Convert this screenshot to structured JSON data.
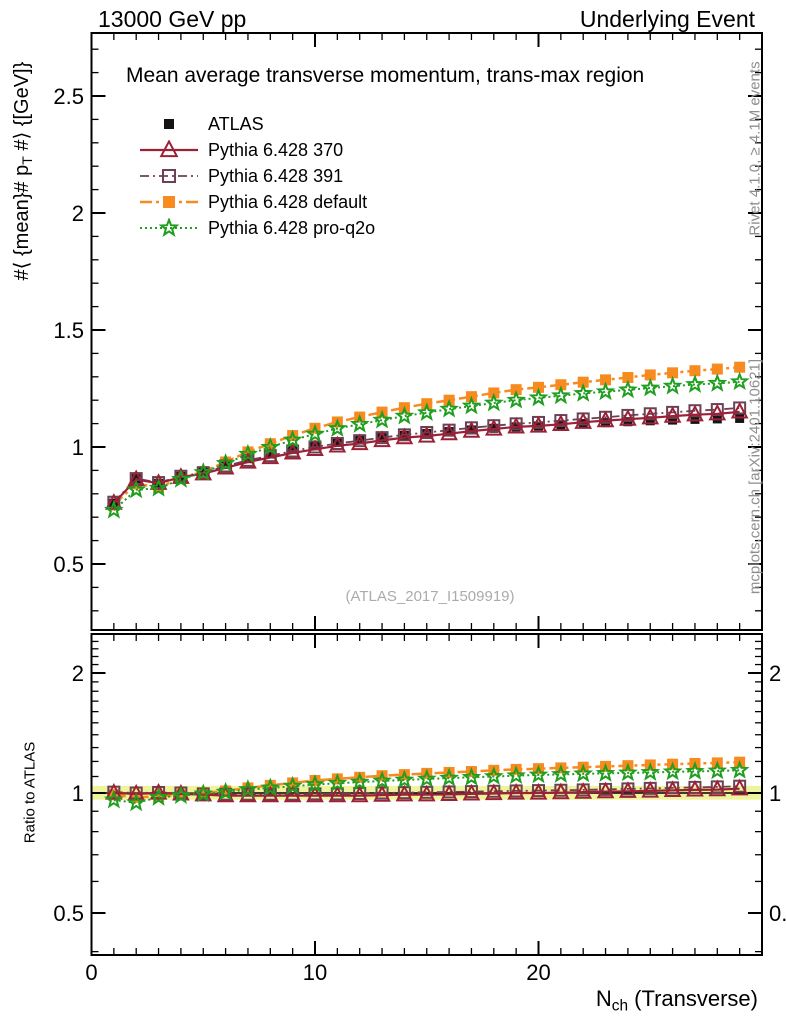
{
  "header": {
    "left": "13000 GeV pp",
    "right": "Underlying Event"
  },
  "side_notes": {
    "top_right": "Rivet 4.1.0, ≥ 4.1M events",
    "bottom_right": "mcplots.cern.ch [arXiv:2401.10621]"
  },
  "watermark": "(ATLAS_2017_I1509919)",
  "chart_data": {
    "type": "line",
    "title": "Mean average transverse momentum, trans-max region",
    "axis_labels": {
      "y_pre": "#⟨ {mean}# p",
      "y_sub": "T",
      "y_post": " #⟩ {[GeV]}",
      "x_pre": "N",
      "x_sub": "ch",
      "x_post": " (Transverse)",
      "ratio": "Ratio to ATLAS"
    },
    "xlim": [
      0,
      30
    ],
    "ylim_main": [
      0.22,
      2.78
    ],
    "ratio_ylim_log": [
      0.39,
      2.52
    ],
    "x_major_ticks": [
      0,
      10,
      20
    ],
    "y_major_ticks": [
      0.5,
      1,
      1.5,
      2,
      2.5
    ],
    "y_major_labels": [
      "0.5",
      "1",
      "1.5",
      "2",
      "2.5"
    ],
    "ratio_major_ticks": [
      0.5,
      1,
      2
    ],
    "ratio_major_labels": [
      "0.5",
      "1",
      "2"
    ],
    "grid": false,
    "legend_position": "top-left",
    "ratio_band": {
      "lo": 0.962,
      "hi": 1.042,
      "color": "#eef49c"
    },
    "x": [
      1,
      2,
      3,
      4,
      5,
      6,
      7,
      8,
      9,
      10,
      11,
      12,
      13,
      14,
      15,
      16,
      17,
      18,
      19,
      20,
      21,
      22,
      23,
      24,
      25,
      26,
      27,
      28,
      29
    ],
    "series": [
      {
        "name": "ATLAS",
        "color": "#141414",
        "marker": "filled-square",
        "marker_size": 9,
        "line": "none",
        "dash": "",
        "width": 0,
        "yerr": 0.012,
        "values": [
          0.76,
          0.865,
          0.845,
          0.875,
          0.895,
          0.925,
          0.95,
          0.97,
          0.99,
          1.005,
          1.02,
          1.03,
          1.04,
          1.05,
          1.058,
          1.066,
          1.073,
          1.08,
          1.086,
          1.09,
          1.095,
          1.1,
          1.104,
          1.108,
          1.112,
          1.115,
          1.118,
          1.12,
          1.122
        ]
      },
      {
        "name": "Pythia 6.428 370",
        "color": "#9c2136",
        "marker": "open-triangle",
        "marker_size": 12,
        "line": "solid",
        "dash": "",
        "width": 2.2,
        "values": [
          0.76,
          0.861,
          0.845,
          0.871,
          0.886,
          0.911,
          0.936,
          0.955,
          0.975,
          0.99,
          1.005,
          1.015,
          1.028,
          1.04,
          1.047,
          1.057,
          1.068,
          1.077,
          1.086,
          1.09,
          1.097,
          1.106,
          1.113,
          1.119,
          1.125,
          1.132,
          1.138,
          1.142,
          1.15
        ],
        "ratio": [
          1.0,
          0.995,
          1.0,
          0.995,
          0.99,
          0.985,
          0.985,
          0.985,
          0.985,
          0.985,
          0.985,
          0.985,
          0.988,
          0.99,
          0.99,
          0.992,
          0.995,
          0.997,
          1.0,
          1.0,
          1.002,
          1.005,
          1.008,
          1.01,
          1.012,
          1.015,
          1.018,
          1.02,
          1.025
        ]
      },
      {
        "name": "Pythia 6.428 391",
        "color": "#6b4255",
        "marker": "open-square",
        "marker_size": 11,
        "line": "dashdot",
        "dash": "9 4 2 4",
        "width": 1.8,
        "values": [
          0.764,
          0.865,
          0.848,
          0.875,
          0.89,
          0.919,
          0.943,
          0.963,
          0.983,
          1.0,
          1.015,
          1.027,
          1.04,
          1.052,
          1.062,
          1.072,
          1.082,
          1.091,
          1.099,
          1.105,
          1.113,
          1.12,
          1.127,
          1.135,
          1.142,
          1.148,
          1.155,
          1.16,
          1.167
        ],
        "ratio": [
          1.005,
          1.0,
          1.003,
          1.0,
          0.995,
          0.993,
          0.993,
          0.993,
          0.993,
          0.995,
          0.995,
          0.997,
          1.0,
          1.002,
          1.004,
          1.006,
          1.008,
          1.01,
          1.012,
          1.014,
          1.016,
          1.018,
          1.021,
          1.024,
          1.027,
          1.03,
          1.033,
          1.036,
          1.04
        ]
      },
      {
        "name": "Pythia 6.428 default",
        "color": "#f78b1f",
        "marker": "filled-square",
        "marker_size": 11,
        "line": "dashdot",
        "dash": "12 4 3 4",
        "width": 2.5,
        "values": [
          0.752,
          0.843,
          0.828,
          0.866,
          0.895,
          0.936,
          0.979,
          1.014,
          1.049,
          1.08,
          1.107,
          1.128,
          1.149,
          1.168,
          1.185,
          1.2,
          1.215,
          1.231,
          1.245,
          1.255,
          1.266,
          1.277,
          1.287,
          1.297,
          1.308,
          1.317,
          1.326,
          1.333,
          1.341
        ],
        "ratio": [
          0.99,
          0.975,
          0.98,
          0.99,
          1.0,
          1.012,
          1.03,
          1.045,
          1.06,
          1.075,
          1.085,
          1.095,
          1.105,
          1.112,
          1.12,
          1.126,
          1.132,
          1.14,
          1.146,
          1.151,
          1.156,
          1.161,
          1.166,
          1.171,
          1.176,
          1.181,
          1.186,
          1.19,
          1.195
        ]
      },
      {
        "name": "Pythia 6.428 pro-q2o",
        "color": "#1f9e1f",
        "marker": "open-star",
        "marker_size": 13,
        "line": "dotted",
        "dash": "2 3",
        "width": 2,
        "values": [
          0.73,
          0.817,
          0.824,
          0.862,
          0.891,
          0.93,
          0.969,
          0.999,
          1.03,
          1.055,
          1.079,
          1.097,
          1.115,
          1.132,
          1.147,
          1.162,
          1.175,
          1.188,
          1.2,
          1.21,
          1.219,
          1.229,
          1.236,
          1.244,
          1.252,
          1.26,
          1.267,
          1.272,
          1.279
        ],
        "ratio": [
          0.96,
          0.945,
          0.975,
          0.985,
          0.995,
          1.005,
          1.02,
          1.03,
          1.04,
          1.05,
          1.058,
          1.065,
          1.072,
          1.078,
          1.084,
          1.09,
          1.095,
          1.1,
          1.105,
          1.11,
          1.113,
          1.117,
          1.12,
          1.123,
          1.126,
          1.13,
          1.133,
          1.136,
          1.14
        ]
      }
    ]
  }
}
